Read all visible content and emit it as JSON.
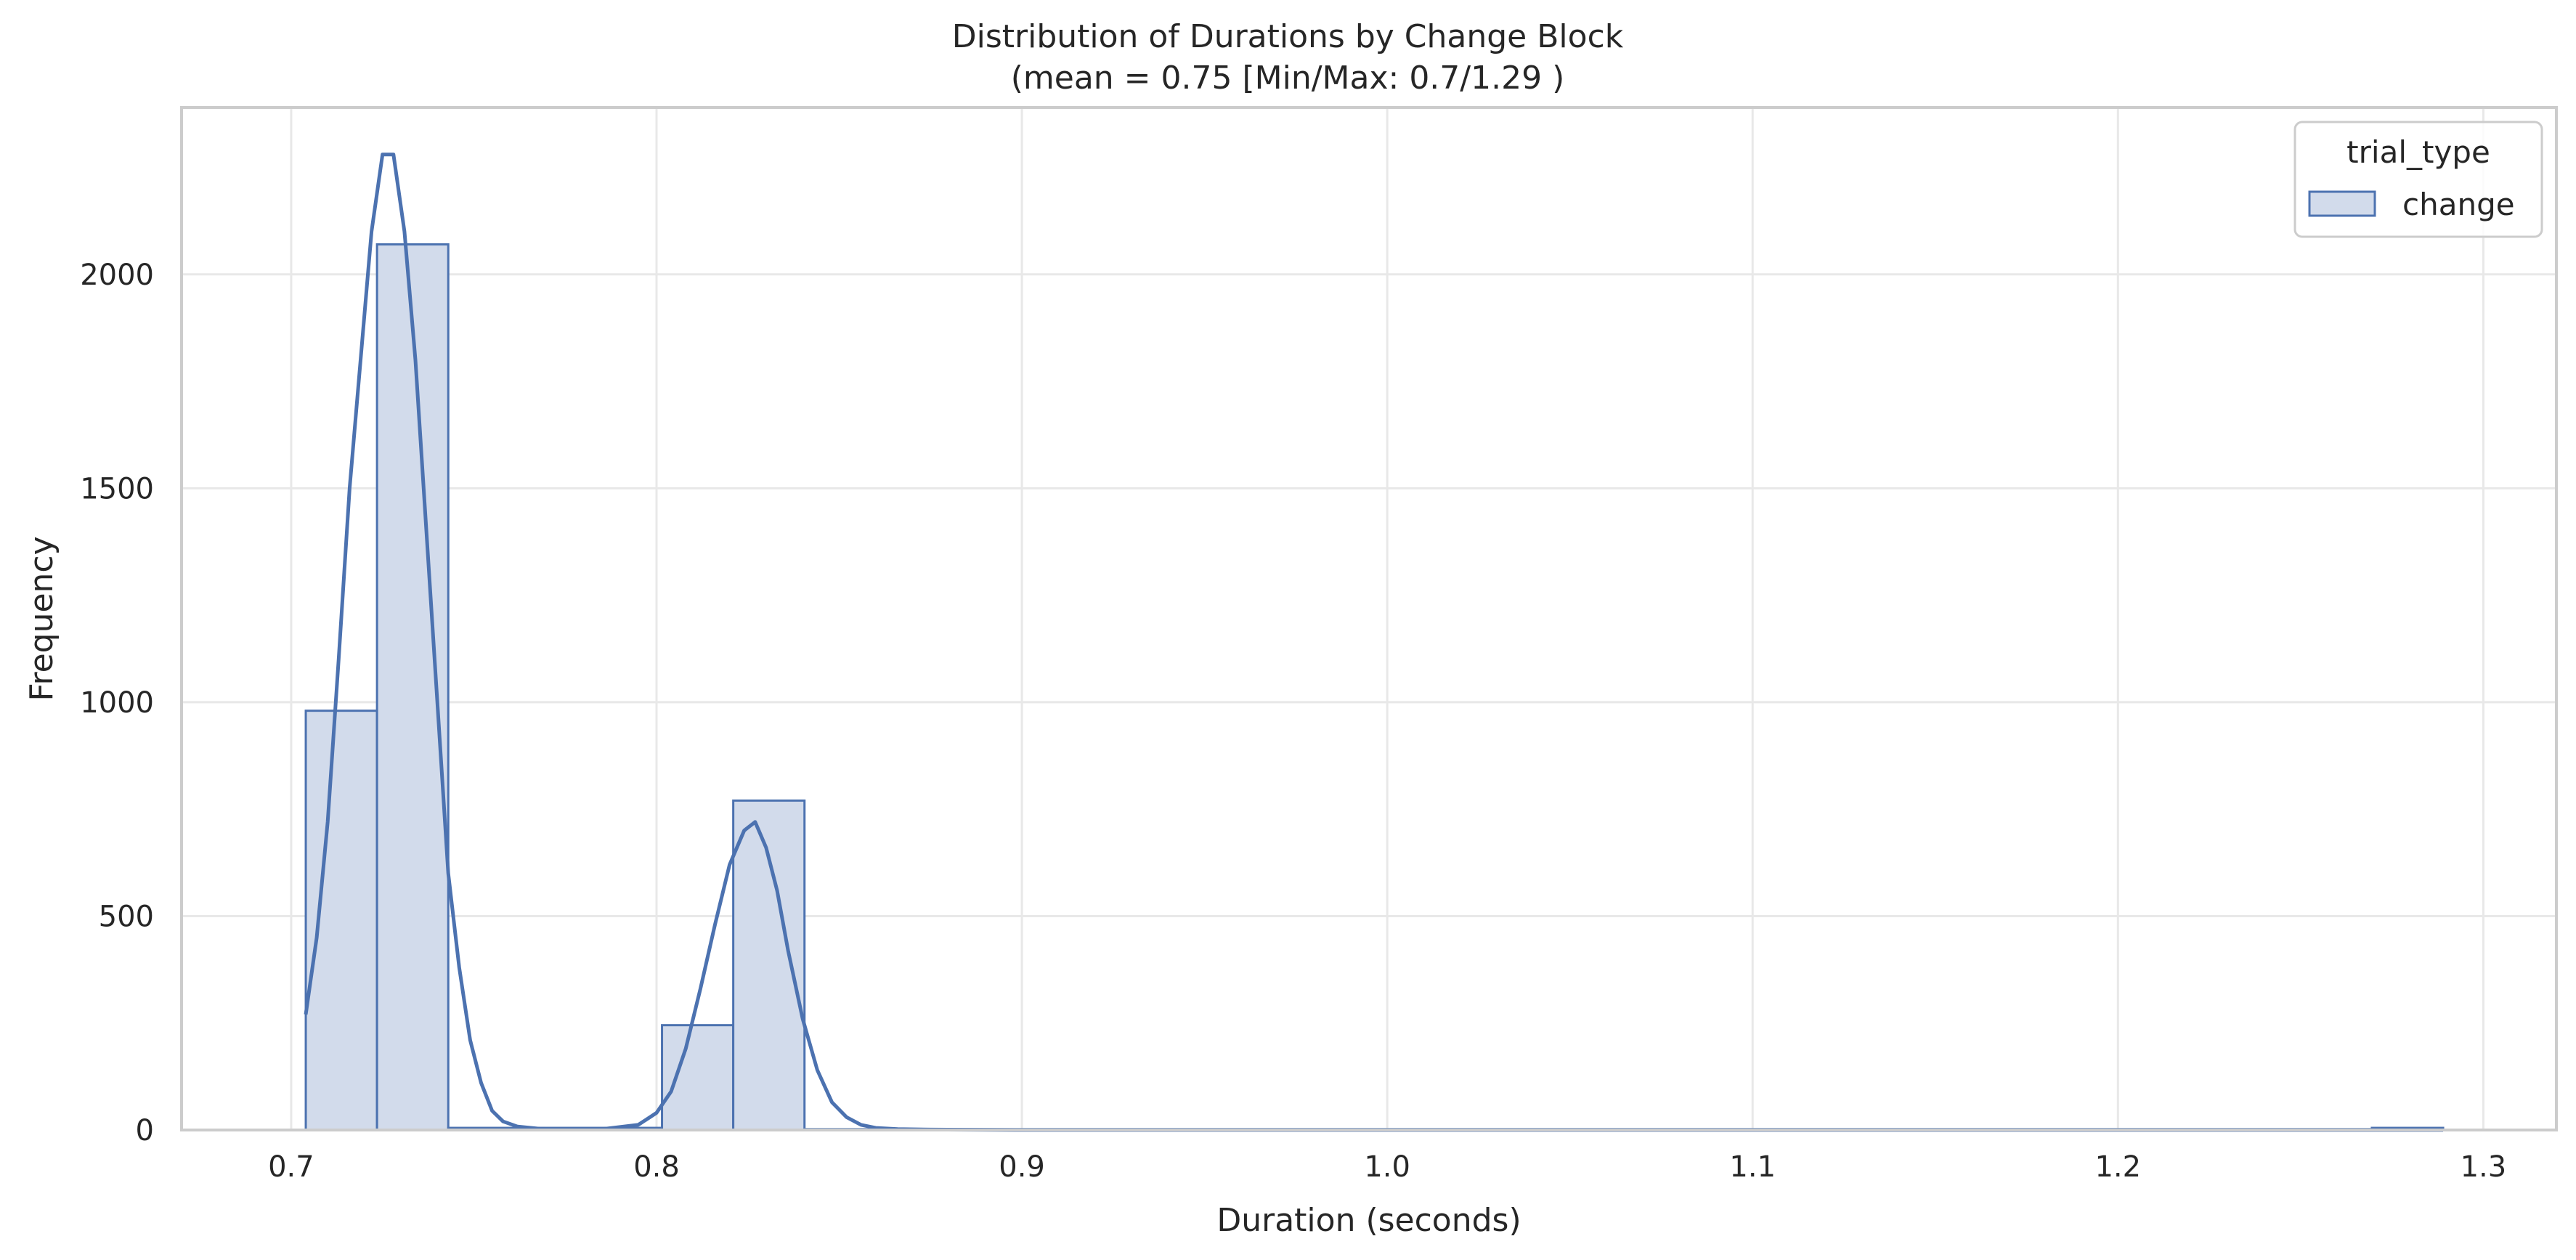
{
  "chart_data": {
    "type": "bar",
    "title": "Distribution of Durations by Change Block",
    "subtitle": "(mean = 0.75 [Min/Max: 0.7/1.29 )",
    "xlabel": "Duration (seconds)",
    "ylabel": "Frequency",
    "xlim": [
      0.67,
      1.32
    ],
    "ylim": [
      0,
      2390
    ],
    "xticks": [
      0.7,
      0.8,
      0.9,
      1.0,
      1.1,
      1.2,
      1.3
    ],
    "xtick_labels": [
      "0.7",
      "0.8",
      "0.9",
      "1.0",
      "1.1",
      "1.2",
      "1.3"
    ],
    "yticks": [
      0,
      500,
      1000,
      1500,
      2000
    ],
    "ytick_labels": [
      "0",
      "500",
      "1000",
      "1500",
      "2000"
    ],
    "grid": true,
    "legend": {
      "title": "trial_type",
      "placement": "top-right",
      "entries": [
        "change"
      ]
    },
    "colors": {
      "series": "#4c72b0",
      "fill": "#d2dbeb",
      "grid": "#e8e8e8",
      "frame": "#cccccc"
    },
    "series": [
      {
        "name": "change",
        "bins": [
          {
            "x0": 0.704,
            "x1": 0.7235,
            "count": 980
          },
          {
            "x0": 0.7235,
            "x1": 0.743,
            "count": 2070
          },
          {
            "x0": 0.743,
            "x1": 0.8015,
            "count": 5
          },
          {
            "x0": 0.8015,
            "x1": 0.821,
            "count": 245
          },
          {
            "x0": 0.821,
            "x1": 0.8405,
            "count": 770
          },
          {
            "x0": 0.8405,
            "x1": 1.2695,
            "count": 2
          },
          {
            "x0": 1.2695,
            "x1": 1.289,
            "count": 5
          }
        ],
        "kde": {
          "x": [
            0.704,
            0.707,
            0.71,
            0.713,
            0.716,
            0.719,
            0.722,
            0.725,
            0.728,
            0.731,
            0.734,
            0.737,
            0.74,
            0.743,
            0.746,
            0.749,
            0.752,
            0.755,
            0.758,
            0.762,
            0.768,
            0.775,
            0.785,
            0.795,
            0.8,
            0.804,
            0.808,
            0.812,
            0.816,
            0.82,
            0.824,
            0.827,
            0.83,
            0.833,
            0.836,
            0.84,
            0.844,
            0.848,
            0.852,
            0.856,
            0.86,
            0.866,
            0.875,
            0.9,
            1.0,
            1.1,
            1.2,
            1.289
          ],
          "y": [
            270,
            450,
            720,
            1100,
            1500,
            1800,
            2100,
            2280,
            2280,
            2100,
            1800,
            1400,
            1000,
            600,
            380,
            210,
            110,
            45,
            20,
            8,
            3,
            1,
            2,
            12,
            40,
            90,
            190,
            330,
            480,
            620,
            700,
            720,
            660,
            560,
            420,
            260,
            140,
            65,
            30,
            12,
            5,
            2,
            1,
            0,
            0,
            0,
            0,
            0
          ]
        }
      }
    ]
  }
}
